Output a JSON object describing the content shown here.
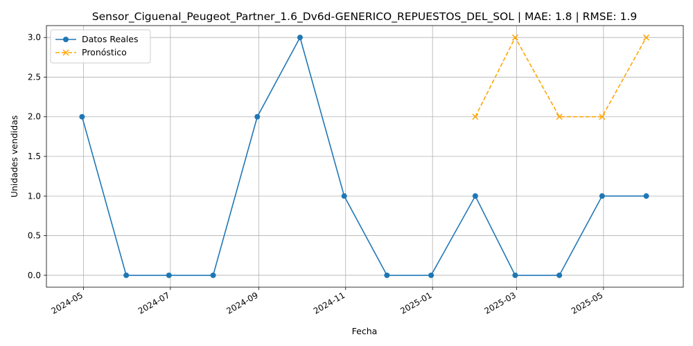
{
  "chart_data": {
    "type": "line",
    "title": "Sensor_Ciguenal_Peugeot_Partner_1.6_Dv6d-GENERICO_REPUESTOS_DEL_SOL | MAE: 1.8 | RMSE: 1.9",
    "xlabel": "Fecha",
    "ylabel": "Unidades vendidas",
    "grid": true,
    "legend_position": "top-left",
    "xlim": [
      "2024-04-05",
      "2025-06-26"
    ],
    "ylim": [
      -0.15,
      3.15
    ],
    "x_ticks": [
      "2024-05",
      "2024-07",
      "2024-09",
      "2024-11",
      "2025-01",
      "2025-03",
      "2025-05"
    ],
    "y_ticks": [
      "0.0",
      "0.5",
      "1.0",
      "1.5",
      "2.0",
      "2.5",
      "3.0"
    ],
    "series": [
      {
        "name": "Datos Reales",
        "color": "#1f77b4",
        "marker": "circle",
        "linestyle": "solid",
        "x": [
          "2024-04-30",
          "2024-05-31",
          "2024-06-30",
          "2024-07-31",
          "2024-08-31",
          "2024-09-30",
          "2024-10-31",
          "2024-11-30",
          "2024-12-31",
          "2025-01-31",
          "2025-02-28",
          "2025-03-31",
          "2025-04-30",
          "2025-05-31"
        ],
        "values": [
          2,
          0,
          0,
          0,
          2,
          3,
          1,
          0,
          0,
          1,
          0,
          0,
          1,
          1
        ]
      },
      {
        "name": "Pronóstico",
        "color": "#ffa500",
        "marker": "x",
        "linestyle": "dashed",
        "x": [
          "2025-01-31",
          "2025-02-28",
          "2025-03-31",
          "2025-04-30",
          "2025-05-31"
        ],
        "values": [
          2,
          3,
          2,
          2,
          3
        ]
      }
    ]
  }
}
